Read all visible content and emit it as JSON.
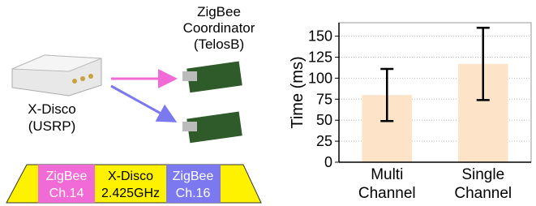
{
  "diagram": {
    "coordinator_label": [
      "ZigBee",
      "Coordinator",
      "(TelosB)"
    ],
    "xdisco_label": [
      "X-Disco",
      "(USRP)"
    ],
    "spectrum": [
      {
        "lines": [
          "ZigBee",
          "Ch.14"
        ]
      },
      {
        "lines": [
          "X-Disco",
          "2.425GHz"
        ]
      },
      {
        "lines": [
          "ZigBee",
          "Ch.16"
        ]
      }
    ]
  },
  "chart_data": {
    "type": "bar",
    "y_label": "Time (ms)",
    "categories": [
      "Multi Channel",
      "Single Channel"
    ],
    "values": [
      80,
      117
    ],
    "errors": [
      31,
      43
    ],
    "color": "#fde4c8",
    "ylim": [
      0,
      166
    ],
    "yticks": [
      0,
      25,
      50,
      75,
      100,
      125,
      150
    ],
    "grid": true
  }
}
